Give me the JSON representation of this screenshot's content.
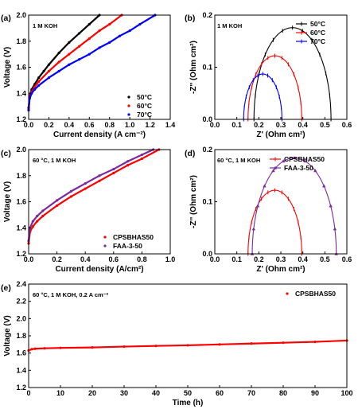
{
  "chart_data": [
    {
      "panel": "(a)",
      "type": "line",
      "annotation": "1 M KOH",
      "xlabel": "Current density (A cm⁻²)",
      "ylabel": "Voltage (V)",
      "xlim": [
        0.0,
        1.4
      ],
      "ylim": [
        1.2,
        2.0
      ],
      "xticks": [
        "0.0",
        "0.2",
        "0.4",
        "0.6",
        "0.8",
        "1.0",
        "1.2",
        "1.4"
      ],
      "yticks": [
        "1.2",
        "1.4",
        "1.6",
        "1.8",
        "2.0"
      ],
      "legend_position": "bottom-right",
      "series": [
        {
          "name": "50°C",
          "color": "#000000",
          "x": [
            0,
            0.01,
            0.03,
            0.06,
            0.1,
            0.15,
            0.2,
            0.3,
            0.4,
            0.5,
            0.6,
            0.7
          ],
          "y": [
            1.29,
            1.38,
            1.43,
            1.47,
            1.52,
            1.57,
            1.62,
            1.71,
            1.79,
            1.86,
            1.93,
            2.0
          ]
        },
        {
          "name": "60°C",
          "color": "#ff0000",
          "x": [
            0,
            0.01,
            0.03,
            0.06,
            0.1,
            0.2,
            0.3,
            0.4,
            0.5,
            0.6,
            0.7,
            0.8,
            0.92
          ],
          "y": [
            1.28,
            1.37,
            1.41,
            1.45,
            1.49,
            1.57,
            1.64,
            1.7,
            1.76,
            1.82,
            1.88,
            1.93,
            2.0
          ]
        },
        {
          "name": "70°C",
          "color": "#0000ff",
          "x": [
            0,
            0.01,
            0.03,
            0.06,
            0.1,
            0.2,
            0.3,
            0.4,
            0.5,
            0.6,
            0.7,
            0.8,
            0.9,
            1.0,
            1.1,
            1.25
          ],
          "y": [
            1.27,
            1.36,
            1.4,
            1.43,
            1.46,
            1.52,
            1.57,
            1.62,
            1.66,
            1.7,
            1.75,
            1.79,
            1.84,
            1.88,
            1.93,
            2.0
          ]
        }
      ]
    },
    {
      "panel": "(b)",
      "type": "line",
      "annotation": "1 M KOH",
      "xlabel": "Z' (Ohm cm²)",
      "ylabel": "-Z'' (Ohm cm²)",
      "xlim": [
        0.0,
        0.6
      ],
      "ylim": [
        0.0,
        0.2
      ],
      "xticks": [
        "0.0",
        "0.1",
        "0.2",
        "0.3",
        "0.4",
        "0.5",
        "0.6"
      ],
      "yticks": [
        "0.0",
        "0.1",
        "0.2"
      ],
      "legend_position": "top-right",
      "series": [
        {
          "name": "50°C",
          "color": "#000000",
          "arc": {
            "start": 0.178,
            "end": 0.528,
            "peak": 0.176
          }
        },
        {
          "name": "60°C",
          "color": "#ff0000",
          "arc": {
            "start": 0.151,
            "end": 0.395,
            "peak": 0.122
          }
        },
        {
          "name": "70°C",
          "color": "#0000ff",
          "arc": {
            "start": 0.131,
            "end": 0.305,
            "peak": 0.087
          }
        }
      ]
    },
    {
      "panel": "(c)",
      "type": "line",
      "annotation": "60 °C, 1 M KOH",
      "xlabel": "Current density (A/cm²)",
      "ylabel": "Voltage (V)",
      "xlim": [
        0.0,
        1.0
      ],
      "ylim": [
        1.2,
        2.0
      ],
      "xticks": [
        "0.0",
        "0.2",
        "0.4",
        "0.6",
        "0.8",
        "1.0"
      ],
      "yticks": [
        "1.2",
        "1.4",
        "1.6",
        "1.8",
        "2.0"
      ],
      "legend_position": "bottom-left",
      "series": [
        {
          "name": "CPSBHAS50",
          "color": "#ff0000",
          "x": [
            0,
            0.01,
            0.03,
            0.06,
            0.1,
            0.2,
            0.3,
            0.4,
            0.5,
            0.6,
            0.7,
            0.8,
            0.92
          ],
          "y": [
            1.28,
            1.37,
            1.41,
            1.45,
            1.49,
            1.57,
            1.64,
            1.7,
            1.76,
            1.82,
            1.88,
            1.93,
            2.0
          ]
        },
        {
          "name": "FAA-3-50",
          "color": "#7b2a9e",
          "x": [
            0,
            0.01,
            0.03,
            0.06,
            0.1,
            0.2,
            0.3,
            0.4,
            0.5,
            0.6,
            0.7,
            0.8,
            0.88
          ],
          "y": [
            1.3,
            1.4,
            1.45,
            1.49,
            1.53,
            1.61,
            1.68,
            1.74,
            1.8,
            1.85,
            1.91,
            1.96,
            2.0
          ]
        }
      ]
    },
    {
      "panel": "(d)",
      "type": "line",
      "annotation": "60 °C, 1 M KOH",
      "xlabel": "Z' (Ohm cm²)",
      "ylabel": "-Z'' (Ohm cm²)",
      "xlim": [
        0.0,
        0.6
      ],
      "ylim": [
        0.0,
        0.2
      ],
      "xticks": [
        "0.0",
        "0.1",
        "0.2",
        "0.3",
        "0.4",
        "0.5",
        "0.6"
      ],
      "yticks": [
        "0.0",
        "0.1",
        "0.2"
      ],
      "legend_position": "top-right",
      "series": [
        {
          "name": "CPSBHAS50",
          "color": "#ff0000",
          "arc": {
            "start": 0.151,
            "end": 0.395,
            "peak": 0.122
          }
        },
        {
          "name": "FAA-3-50",
          "color": "#7b2a9e",
          "arc": {
            "start": 0.17,
            "end": 0.552,
            "peak": 0.184
          }
        }
      ]
    },
    {
      "panel": "(e)",
      "type": "line",
      "annotation": "60 °C, 1 M KOH, 0.2 A cm⁻²",
      "xlabel": "Time (h)",
      "ylabel": "Voltage (V)",
      "xlim": [
        0,
        100
      ],
      "ylim": [
        1.2,
        2.4
      ],
      "xticks": [
        "0",
        "10",
        "20",
        "30",
        "40",
        "50",
        "60",
        "70",
        "80",
        "90",
        "100"
      ],
      "yticks": [
        "1.2",
        "1.4",
        "1.6",
        "1.8",
        "2.0",
        "2.2",
        "2.4"
      ],
      "legend_position": "top-right",
      "series": [
        {
          "name": "CPSBHAS50",
          "color": "#ff0000",
          "x": [
            0,
            1,
            2,
            5,
            10,
            20,
            30,
            40,
            50,
            60,
            70,
            80,
            90,
            100
          ],
          "y": [
            1.63,
            1.645,
            1.65,
            1.655,
            1.66,
            1.665,
            1.675,
            1.683,
            1.69,
            1.7,
            1.71,
            1.72,
            1.73,
            1.745
          ]
        }
      ]
    }
  ]
}
